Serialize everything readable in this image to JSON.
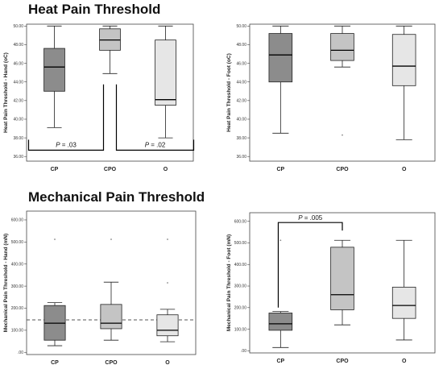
{
  "sections": {
    "heat_title": "Heat Pain Threshold",
    "mech_title": "Mechanical Pain Threshold"
  },
  "colors": {
    "CP": "#8c8c8c",
    "CPO": "#c4c4c4",
    "O": "#e6e6e6",
    "reference_line": "#555555"
  },
  "chart_data": [
    {
      "type": "box",
      "ylabel": "Heat Pain Threshold - Hand (oC)",
      "categories": [
        "CP",
        "CPO",
        "O"
      ],
      "ylim": [
        35.5,
        50.2
      ],
      "yticks": [
        "36.00",
        "38.00",
        "40.00",
        "42.00",
        "44.00",
        "46.00",
        "48.00",
        "50.00"
      ],
      "boxes": [
        {
          "min": 39.1,
          "q1": 43.0,
          "median": 45.6,
          "q3": 47.6,
          "max": 50.0,
          "outliers": []
        },
        {
          "min": 44.9,
          "q1": 47.4,
          "median": 48.5,
          "q3": 49.7,
          "max": 50.0,
          "outliers": []
        },
        {
          "min": 38.0,
          "q1": 41.5,
          "median": 42.1,
          "q3": 48.5,
          "max": 50.0,
          "outliers": []
        }
      ],
      "annotations": [
        {
          "p_label": "P",
          "value": " = .03",
          "from": "CP",
          "to": "CPO"
        },
        {
          "p_label": "P",
          "value": " = .02",
          "from": "CPO",
          "to": "O"
        }
      ]
    },
    {
      "type": "box",
      "ylabel": "Heat Pain Threshold - Foot (oC)",
      "categories": [
        "CP",
        "CPO",
        "O"
      ],
      "ylim": [
        35.5,
        50.2
      ],
      "yticks": [
        "36.00",
        "38.00",
        "40.00",
        "42.00",
        "44.00",
        "46.00",
        "48.00",
        "50.00"
      ],
      "boxes": [
        {
          "min": 38.5,
          "q1": 44.0,
          "median": 46.9,
          "q3": 49.2,
          "max": 50.0,
          "outliers": []
        },
        {
          "min": 45.6,
          "q1": 46.3,
          "median": 47.4,
          "q3": 49.2,
          "max": 50.0,
          "outliers": [
            38.3
          ]
        },
        {
          "min": 37.8,
          "q1": 43.6,
          "median": 45.7,
          "q3": 49.1,
          "max": 50.0,
          "outliers": []
        }
      ],
      "annotations": []
    },
    {
      "type": "box",
      "ylabel": "Mechanical Pain Threshold - Hand (mN)",
      "categories": [
        "CP",
        "CPO",
        "O"
      ],
      "ylim": [
        -10,
        640
      ],
      "yticks": [
        ".00",
        "100.00",
        "200.00",
        "300.00",
        "400.00",
        "500.00",
        "600.00"
      ],
      "boxes": [
        {
          "min": 30,
          "q1": 55,
          "median": 132,
          "q3": 212,
          "max": 225,
          "outliers": [
            512
          ]
        },
        {
          "min": 55,
          "q1": 107,
          "median": 132,
          "q3": 217,
          "max": 318,
          "outliers": [
            512
          ]
        },
        {
          "min": 48,
          "q1": 75,
          "median": 100,
          "q3": 170,
          "max": 195,
          "outliers": [
            512,
            315
          ]
        }
      ],
      "reference_line": 147,
      "annotations": []
    },
    {
      "type": "box",
      "ylabel": "Mechanical Pain Threshold - Foot (mN)",
      "categories": [
        "CP",
        "CPO",
        "O"
      ],
      "ylim": [
        -10,
        640
      ],
      "yticks": [
        ".00",
        "100.00",
        "200.00",
        "300.00",
        "400.00",
        "500.00",
        "600.00"
      ],
      "boxes": [
        {
          "min": 15,
          "q1": 95,
          "median": 125,
          "q3": 175,
          "max": 182,
          "outliers": [
            512
          ]
        },
        {
          "min": 120,
          "q1": 190,
          "median": 260,
          "q3": 480,
          "max": 512,
          "outliers": []
        },
        {
          "min": 50,
          "q1": 150,
          "median": 210,
          "q3": 295,
          "max": 512,
          "outliers": []
        }
      ],
      "annotations": [
        {
          "p_label": "P",
          "value": " = .005",
          "from": "CP",
          "to": "CPO"
        }
      ]
    }
  ]
}
